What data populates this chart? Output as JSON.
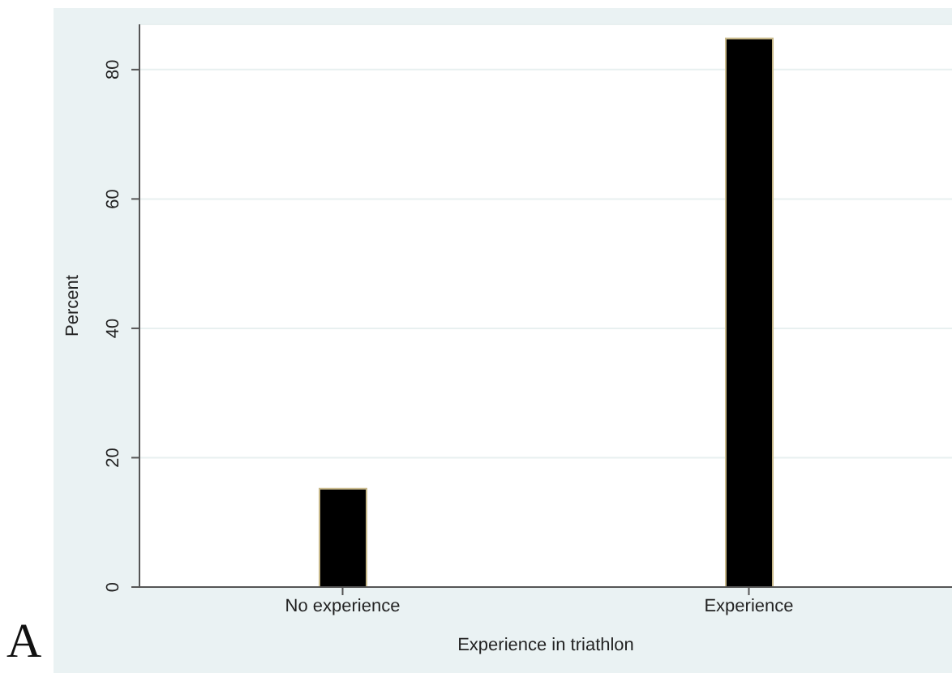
{
  "chart_data": {
    "type": "bar",
    "xlabel": "Experience in triathlon",
    "ylabel": "Percent",
    "categories": [
      "No experience",
      "Experience"
    ],
    "values": [
      15.2,
      84.8
    ],
    "color": "#000000",
    "ylim": [
      0,
      87
    ],
    "yticks": [
      0,
      20,
      40,
      60,
      80
    ],
    "grid": "y",
    "annotations": [
      "A"
    ]
  }
}
